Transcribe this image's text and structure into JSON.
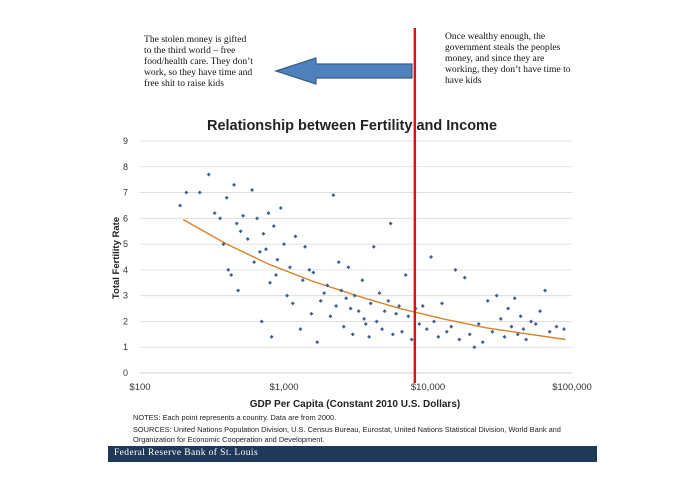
{
  "annotations": {
    "left_text": "The stolen money is gifted to the third world – free food/health care. They don’t work, so they have time and free shit to raise kids",
    "right_text": "Once wealthy enough, the government steals the peoples money, and since they are working, they don’t have time to have kids"
  },
  "colors": {
    "points": "#3e6491",
    "trend": "#d9822b",
    "vline": "#dd1111",
    "arrow_fill": "#4f81bd",
    "arrow_stroke": "#385d8a",
    "grid": "#d9d9d9",
    "footer_bg": "#1f3a58"
  },
  "chart_data": {
    "type": "scatter",
    "title": "Relationship between Fertility and Income",
    "xlabel": "GDP Per Capita (Constant 2010 U.S. Dollars)",
    "ylabel": "Total Fertility Rate",
    "xscale": "log",
    "xlim": [
      100,
      100000
    ],
    "ylim": [
      0,
      9
    ],
    "xticks": [
      {
        "value": 100,
        "label": "$100"
      },
      {
        "value": 1000,
        "label": "$1,000"
      },
      {
        "value": 10000,
        "label": "$10,000"
      },
      {
        "value": 100000,
        "label": "$100,000"
      }
    ],
    "yticks": [
      0,
      1,
      2,
      3,
      4,
      5,
      6,
      7,
      8,
      9
    ],
    "grid": true,
    "vertical_line_x": 8100,
    "trend": [
      [
        200,
        5.95
      ],
      [
        400,
        5.0
      ],
      [
        800,
        4.2
      ],
      [
        1600,
        3.55
      ],
      [
        3200,
        3.0
      ],
      [
        6400,
        2.5
      ],
      [
        12800,
        2.1
      ],
      [
        25600,
        1.75
      ],
      [
        51200,
        1.5
      ],
      [
        90000,
        1.3
      ]
    ],
    "points": [
      [
        190,
        6.5
      ],
      [
        210,
        7.0
      ],
      [
        260,
        7.0
      ],
      [
        300,
        7.7
      ],
      [
        330,
        6.2
      ],
      [
        360,
        6.0
      ],
      [
        380,
        5.0
      ],
      [
        400,
        6.8
      ],
      [
        410,
        4.0
      ],
      [
        430,
        3.8
      ],
      [
        450,
        7.3
      ],
      [
        470,
        5.8
      ],
      [
        480,
        3.2
      ],
      [
        500,
        5.5
      ],
      [
        520,
        6.1
      ],
      [
        560,
        5.2
      ],
      [
        600,
        7.1
      ],
      [
        620,
        4.3
      ],
      [
        650,
        6.0
      ],
      [
        680,
        4.7
      ],
      [
        700,
        2.0
      ],
      [
        720,
        5.4
      ],
      [
        750,
        4.8
      ],
      [
        780,
        6.2
      ],
      [
        800,
        3.5
      ],
      [
        820,
        1.4
      ],
      [
        850,
        5.7
      ],
      [
        880,
        3.8
      ],
      [
        900,
        4.4
      ],
      [
        950,
        6.4
      ],
      [
        1000,
        5.0
      ],
      [
        1050,
        3.0
      ],
      [
        1100,
        4.1
      ],
      [
        1150,
        2.7
      ],
      [
        1200,
        5.3
      ],
      [
        1300,
        1.7
      ],
      [
        1350,
        3.6
      ],
      [
        1400,
        4.9
      ],
      [
        1500,
        4.0
      ],
      [
        1550,
        2.3
      ],
      [
        1600,
        3.9
      ],
      [
        1700,
        1.2
      ],
      [
        1800,
        2.8
      ],
      [
        1900,
        3.1
      ],
      [
        2000,
        3.4
      ],
      [
        2100,
        2.2
      ],
      [
        2200,
        6.9
      ],
      [
        2300,
        2.6
      ],
      [
        2400,
        4.3
      ],
      [
        2500,
        3.2
      ],
      [
        2600,
        1.8
      ],
      [
        2700,
        2.9
      ],
      [
        2800,
        4.1
      ],
      [
        2900,
        2.5
      ],
      [
        3000,
        1.5
      ],
      [
        3100,
        3.0
      ],
      [
        3300,
        2.4
      ],
      [
        3500,
        3.6
      ],
      [
        3600,
        2.1
      ],
      [
        3700,
        1.9
      ],
      [
        3900,
        1.4
      ],
      [
        4000,
        2.7
      ],
      [
        4200,
        4.9
      ],
      [
        4400,
        2.0
      ],
      [
        4600,
        3.1
      ],
      [
        4800,
        1.7
      ],
      [
        5000,
        2.4
      ],
      [
        5300,
        2.8
      ],
      [
        5500,
        5.8
      ],
      [
        5700,
        1.5
      ],
      [
        6000,
        2.3
      ],
      [
        6300,
        2.6
      ],
      [
        6600,
        1.6
      ],
      [
        7000,
        3.8
      ],
      [
        7300,
        2.2
      ],
      [
        7700,
        1.3
      ],
      [
        8200,
        2.5
      ],
      [
        8700,
        1.9
      ],
      [
        9200,
        2.6
      ],
      [
        9800,
        1.7
      ],
      [
        10500,
        4.5
      ],
      [
        11000,
        2.0
      ],
      [
        11800,
        1.4
      ],
      [
        12500,
        2.7
      ],
      [
        13500,
        1.6
      ],
      [
        14500,
        1.8
      ],
      [
        15500,
        4.0
      ],
      [
        16500,
        1.3
      ],
      [
        18000,
        3.7
      ],
      [
        19500,
        1.5
      ],
      [
        21000,
        1.0
      ],
      [
        22500,
        1.9
      ],
      [
        24000,
        1.2
      ],
      [
        26000,
        2.8
      ],
      [
        28000,
        1.6
      ],
      [
        30000,
        3.0
      ],
      [
        32000,
        2.1
      ],
      [
        34000,
        1.4
      ],
      [
        36000,
        2.5
      ],
      [
        38000,
        1.8
      ],
      [
        40000,
        2.9
      ],
      [
        42000,
        1.5
      ],
      [
        44000,
        2.2
      ],
      [
        46000,
        1.7
      ],
      [
        48000,
        1.3
      ],
      [
        52000,
        2.0
      ],
      [
        56000,
        1.9
      ],
      [
        60000,
        2.4
      ],
      [
        65000,
        3.2
      ],
      [
        70000,
        1.6
      ],
      [
        78000,
        1.8
      ],
      [
        88000,
        1.7
      ]
    ]
  },
  "notes": {
    "line1": "NOTES: Each point represents a country. Data are from 2000.",
    "line2": "SOURCES: United Nations Population Division, U.S. Census Bureau, Eurostat, United Nations Statistical Division, World Bank and Organization for Economic Cooperation and Development."
  },
  "footer": {
    "label": "Federal Reserve Bank of St. Louis"
  }
}
